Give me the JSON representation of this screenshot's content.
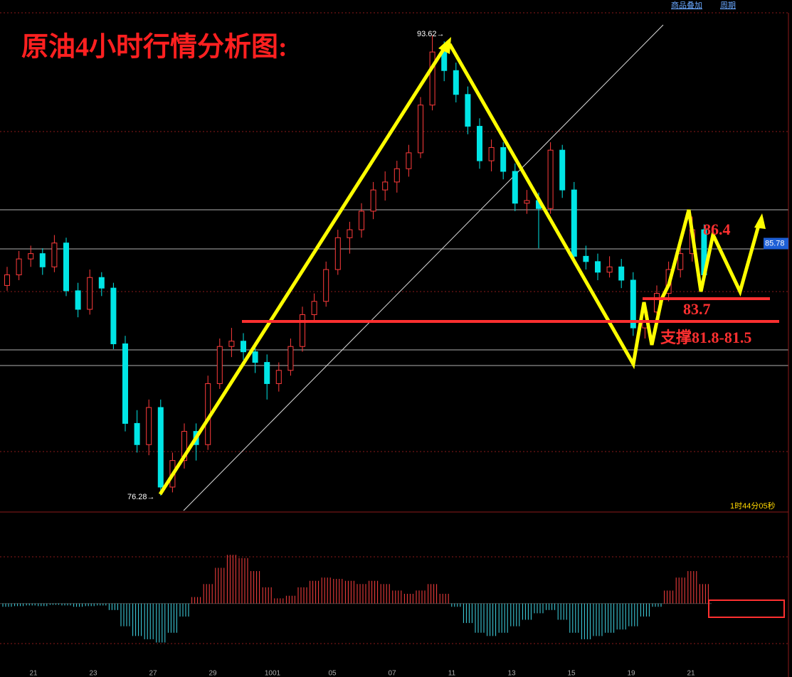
{
  "chart_data": {
    "type": "candlestick",
    "title": "原油4小时行情分析图:",
    "top_links": [
      "商品叠加",
      "周期"
    ],
    "timer": "1时44分05秒",
    "ohlc": [
      [
        84.2,
        84.9,
        84.0,
        84.6
      ],
      [
        84.6,
        85.5,
        84.4,
        85.2
      ],
      [
        85.2,
        85.7,
        84.9,
        85.4
      ],
      [
        85.4,
        85.6,
        84.6,
        84.9
      ],
      [
        84.9,
        86.1,
        84.7,
        85.8
      ],
      [
        85.8,
        86.0,
        83.8,
        84.0
      ],
      [
        84.0,
        84.3,
        83.0,
        83.3
      ],
      [
        83.3,
        84.8,
        83.1,
        84.5
      ],
      [
        84.5,
        84.7,
        83.8,
        84.1
      ],
      [
        84.1,
        84.3,
        81.8,
        82.0
      ],
      [
        82.0,
        82.3,
        78.7,
        79.0
      ],
      [
        79.0,
        79.5,
        77.9,
        78.2
      ],
      [
        78.2,
        79.9,
        77.8,
        79.6
      ],
      [
        79.6,
        79.9,
        76.28,
        76.6
      ],
      [
        76.6,
        77.9,
        76.4,
        77.6
      ],
      [
        77.6,
        79.0,
        77.3,
        78.7
      ],
      [
        78.7,
        79.0,
        77.6,
        78.2
      ],
      [
        78.2,
        80.8,
        78.0,
        80.5
      ],
      [
        80.5,
        82.2,
        80.3,
        81.9
      ],
      [
        81.9,
        82.6,
        81.5,
        82.1
      ],
      [
        82.1,
        82.4,
        81.4,
        81.7
      ],
      [
        81.7,
        82.0,
        80.9,
        81.3
      ],
      [
        81.3,
        81.6,
        79.9,
        80.5
      ],
      [
        80.5,
        81.3,
        80.2,
        81.0
      ],
      [
        81.0,
        82.2,
        80.8,
        81.9
      ],
      [
        81.9,
        83.4,
        81.7,
        83.1
      ],
      [
        83.1,
        83.9,
        82.8,
        83.6
      ],
      [
        83.6,
        85.1,
        83.4,
        84.8
      ],
      [
        84.8,
        86.3,
        84.6,
        86.0
      ],
      [
        86.0,
        86.6,
        85.4,
        86.3
      ],
      [
        86.3,
        87.3,
        86.0,
        87.0
      ],
      [
        87.0,
        88.1,
        86.7,
        87.8
      ],
      [
        87.8,
        88.5,
        87.4,
        88.1
      ],
      [
        88.1,
        88.9,
        87.7,
        88.6
      ],
      [
        88.6,
        89.5,
        88.3,
        89.2
      ],
      [
        89.2,
        91.3,
        89.0,
        91.0
      ],
      [
        91.0,
        93.62,
        90.8,
        93.0
      ],
      [
        93.0,
        93.4,
        91.9,
        92.3
      ],
      [
        92.3,
        92.6,
        91.1,
        91.4
      ],
      [
        91.4,
        91.7,
        89.9,
        90.2
      ],
      [
        90.2,
        90.5,
        88.6,
        88.9
      ],
      [
        88.9,
        89.7,
        88.5,
        89.4
      ],
      [
        89.4,
        89.6,
        88.2,
        88.5
      ],
      [
        88.5,
        88.8,
        87.0,
        87.3
      ],
      [
        87.3,
        87.8,
        86.9,
        87.4
      ],
      [
        87.4,
        87.7,
        85.6,
        87.1
      ],
      [
        87.1,
        89.6,
        86.9,
        89.3
      ],
      [
        89.3,
        89.5,
        87.5,
        87.8
      ],
      [
        87.8,
        88.1,
        85.0,
        85.3
      ],
      [
        85.3,
        85.7,
        84.8,
        85.1
      ],
      [
        85.1,
        85.4,
        84.4,
        84.7
      ],
      [
        84.7,
        85.3,
        84.5,
        84.9
      ],
      [
        84.9,
        85.2,
        84.1,
        84.4
      ],
      [
        84.4,
        84.7,
        82.3,
        82.6
      ],
      [
        82.6,
        83.5,
        82.2,
        83.2
      ],
      [
        83.2,
        84.2,
        83.0,
        83.9
      ],
      [
        83.9,
        85.1,
        83.6,
        84.8
      ],
      [
        84.8,
        85.7,
        84.5,
        85.4
      ],
      [
        85.4,
        86.8,
        85.1,
        86.3
      ],
      [
        86.3,
        86.5,
        84.4,
        84.6
      ]
    ],
    "ylim": [
      75.66,
      94.96
    ],
    "macd_hist": [
      -0.05,
      -0.04,
      -0.03,
      -0.04,
      -0.02,
      -0.03,
      -0.05,
      -0.04,
      -0.03,
      -0.1,
      -0.35,
      -0.5,
      -0.55,
      -0.6,
      -0.45,
      -0.2,
      0.1,
      0.3,
      0.55,
      0.75,
      0.7,
      0.5,
      0.25,
      0.08,
      0.12,
      0.25,
      0.35,
      0.4,
      0.38,
      0.35,
      0.3,
      0.35,
      0.3,
      0.2,
      0.15,
      0.2,
      0.3,
      0.15,
      -0.05,
      -0.3,
      -0.45,
      -0.5,
      -0.45,
      -0.35,
      -0.25,
      -0.15,
      -0.1,
      -0.25,
      -0.45,
      -0.55,
      -0.5,
      -0.45,
      -0.4,
      -0.35,
      -0.2,
      -0.05,
      0.2,
      0.4,
      0.5,
      0.3
    ],
    "macd_ylim": [
      -1,
      1.3
    ],
    "x_labels": [
      "21",
      "23",
      "27",
      "29",
      "1001",
      "05",
      "07",
      "11",
      "13",
      "15",
      "19",
      "21"
    ],
    "high_label": "93.62→",
    "low_label": "76.28→",
    "price_tag": 85.78,
    "annotations": {
      "target": "86.4",
      "pivot": "83.7",
      "support": "支撑81.8-81.5"
    }
  }
}
